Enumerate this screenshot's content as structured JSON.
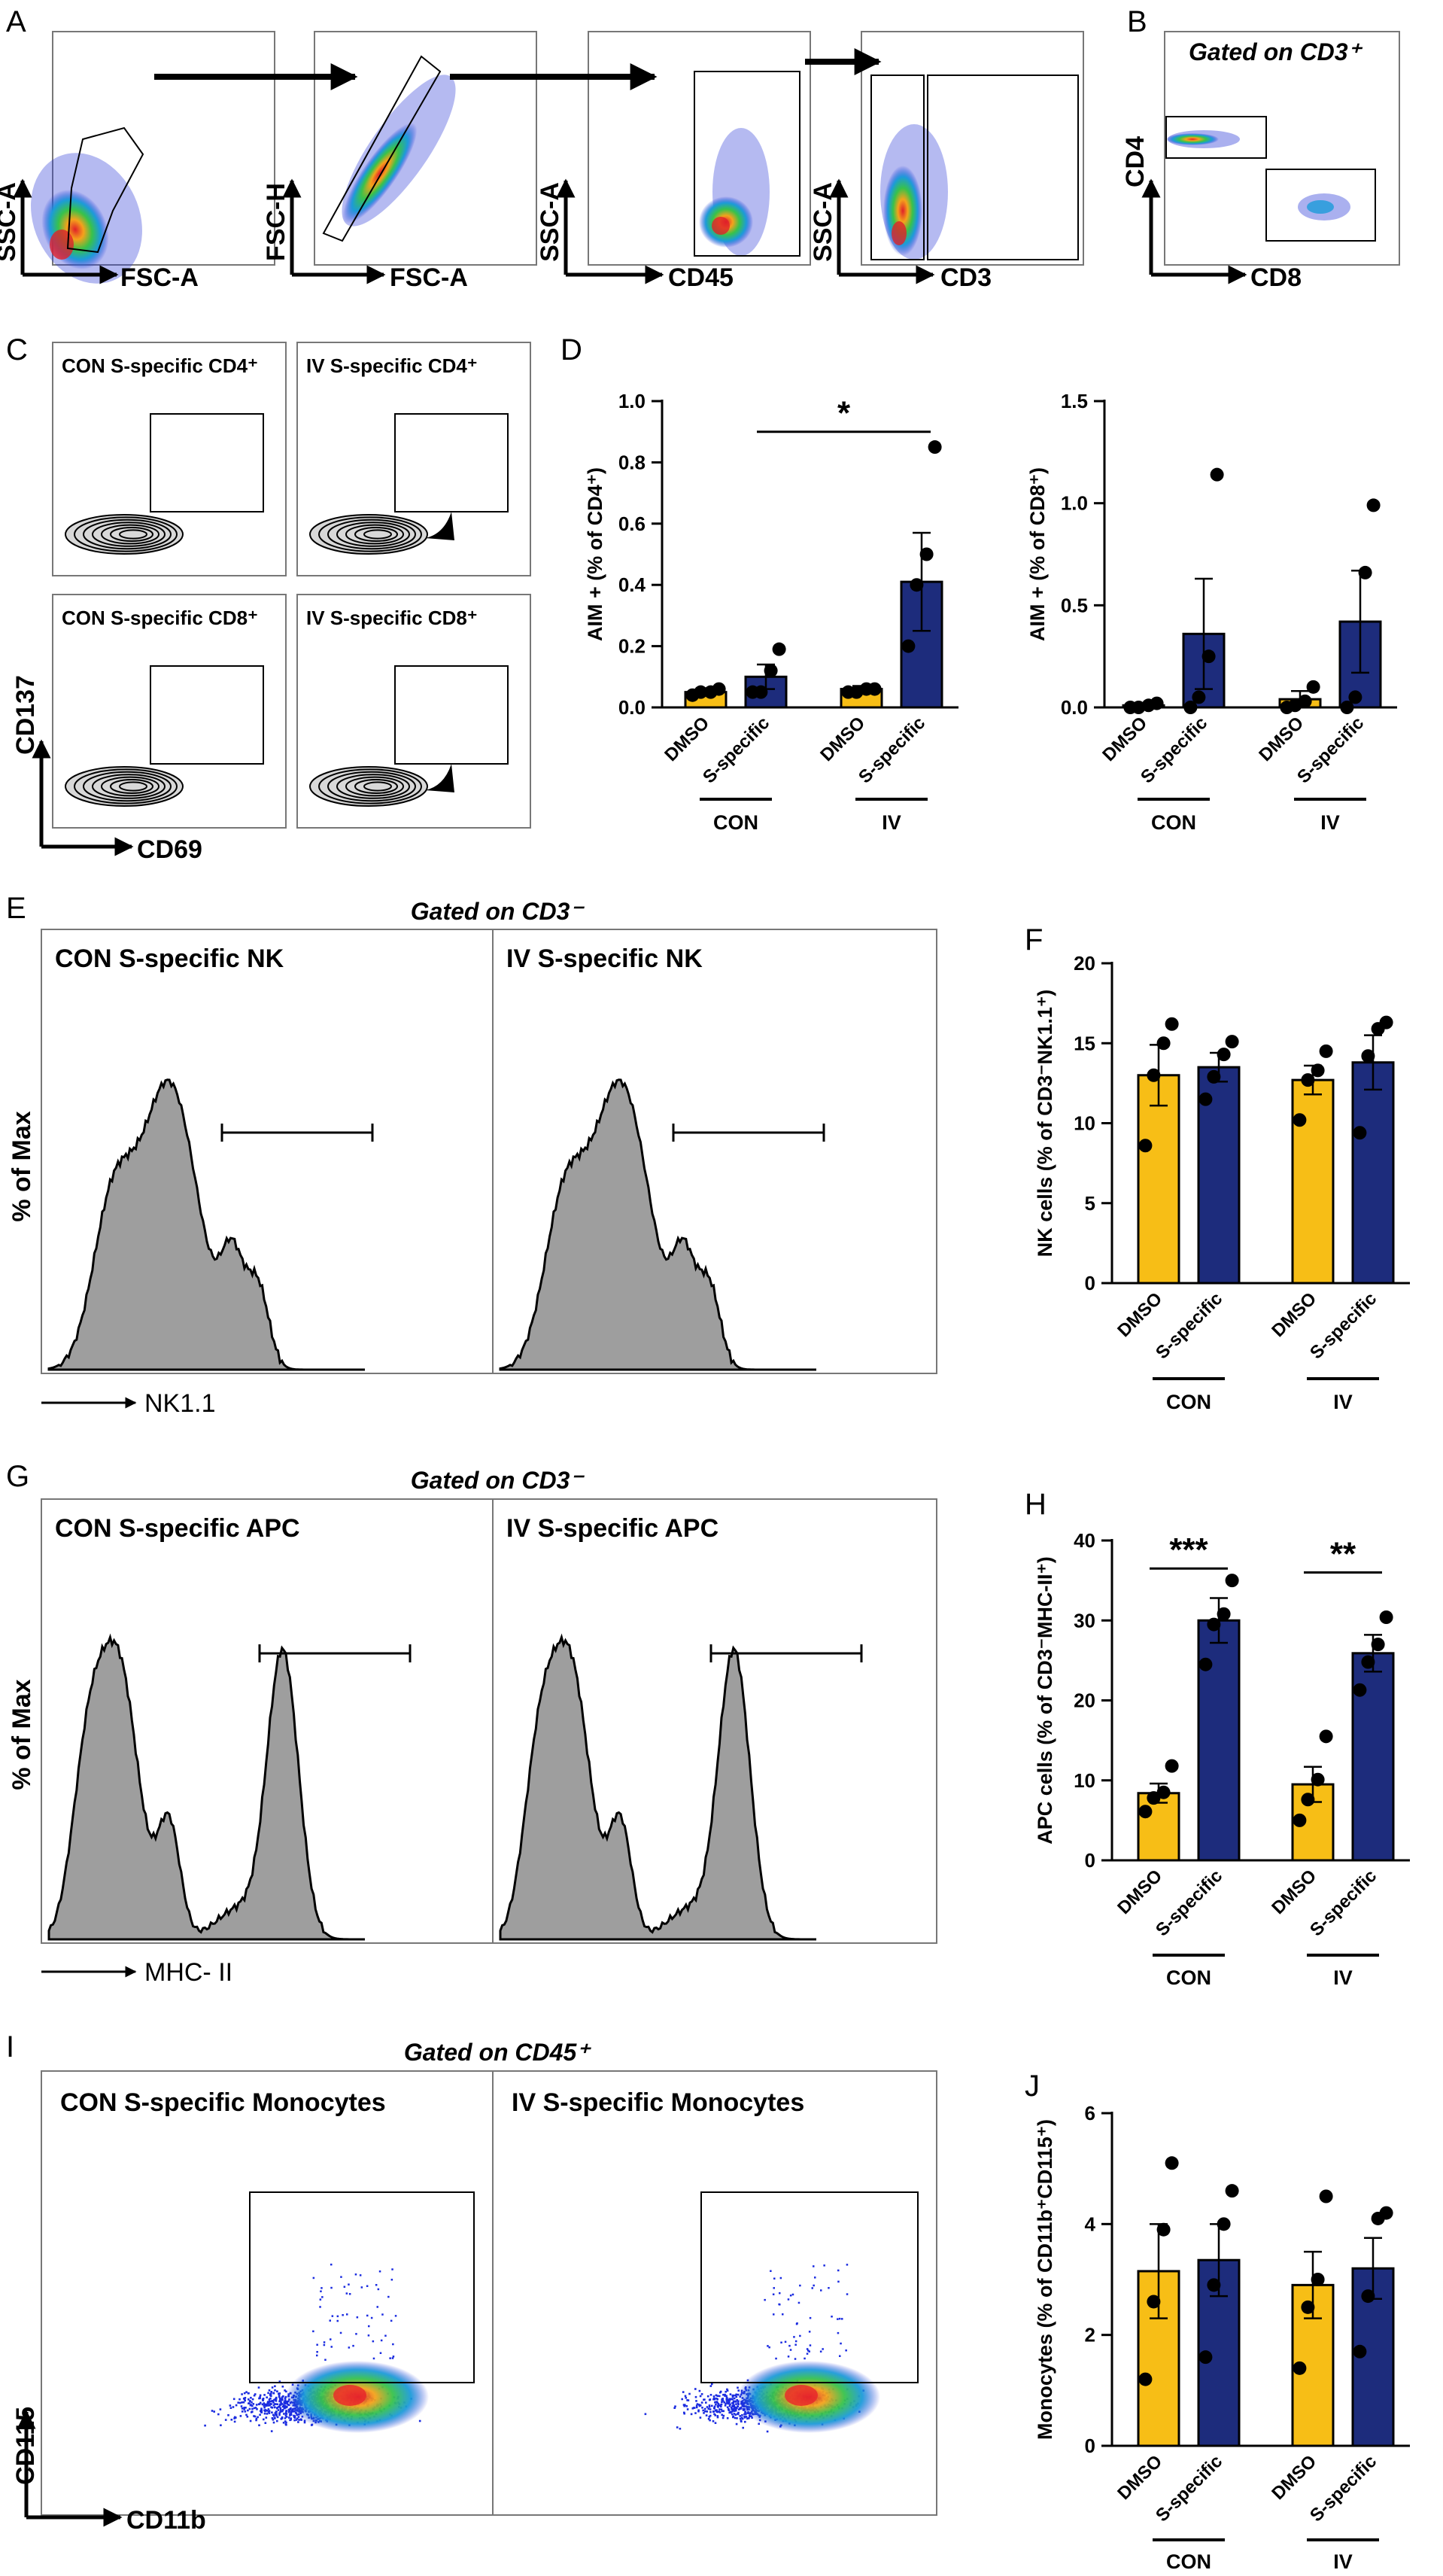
{
  "panel_letters": {
    "A": "A",
    "B": "B",
    "C": "C",
    "D": "D",
    "E": "E",
    "F": "F",
    "G": "G",
    "H": "H",
    "I": "I",
    "J": "J"
  },
  "colors": {
    "dmso": "#F7BE16",
    "s_specific": "#1D2C7C",
    "histogram_fill": "#9E9E9E",
    "dot_low": "#1A2BE0",
    "dot_high": "#E7262A"
  },
  "panel_A": {
    "plots": [
      {
        "y_label": "SSC-A",
        "x_label": "FSC-A"
      },
      {
        "y_label": "FSC-H",
        "x_label": "FSC-A"
      },
      {
        "y_label": "SSC-A",
        "x_label": "CD45"
      },
      {
        "y_label": "SSC-A",
        "x_label": "CD3"
      }
    ]
  },
  "panel_B": {
    "title": "Gated on CD3⁺",
    "y_label": "CD4",
    "x_label": "CD8"
  },
  "panel_C": {
    "titles": [
      "CON S-specific CD4⁺",
      "IV S-specific CD4⁺",
      "CON S-specific CD8⁺",
      "IV S-specific CD8⁺"
    ],
    "y_label": "CD137",
    "x_label": "CD69"
  },
  "panel_E": {
    "gate_title": "Gated on CD3⁻",
    "titles": [
      "CON S-specific NK",
      "IV S-specific NK"
    ],
    "y_label": "% of Max",
    "x_label": "NK1.1"
  },
  "panel_G": {
    "gate_title": "Gated on CD3⁻",
    "titles": [
      "CON S-specific APC",
      "IV S-specific APC"
    ],
    "y_label": "% of Max",
    "x_label": "MHC- II"
  },
  "panel_I": {
    "gate_title": "Gated on CD45⁺",
    "titles": [
      "CON S-specific Monocytes",
      "IV S-specific Monocytes"
    ],
    "y_label": "CD115",
    "x_label": "CD11b"
  },
  "chart_data": [
    {
      "id": "D1",
      "type": "bar",
      "ylabel": "AIM + (% of CD4⁺)",
      "ylim": [
        0,
        1.0
      ],
      "yticks": [
        "0.0",
        "0.2",
        "0.4",
        "0.6",
        "0.8",
        "1.0"
      ],
      "ytick_values": [
        0,
        0.2,
        0.4,
        0.6,
        0.8,
        1.0
      ],
      "categories": [
        "DMSO",
        "S-specific",
        "DMSO",
        "S-specific"
      ],
      "groups": [
        "CON",
        "IV"
      ],
      "values": [
        0.05,
        0.1,
        0.06,
        0.41
      ],
      "errors": [
        0.01,
        0.04,
        0.01,
        0.16
      ],
      "points": [
        [
          0.04,
          0.05,
          0.05,
          0.06
        ],
        [
          0.05,
          0.05,
          0.12,
          0.19
        ],
        [
          0.05,
          0.05,
          0.06,
          0.06
        ],
        [
          0.2,
          0.4,
          0.5,
          0.85
        ]
      ],
      "significance": [
        {
          "from": 1,
          "to": 3,
          "label": "*",
          "y": 0.9
        }
      ]
    },
    {
      "id": "D2",
      "type": "bar",
      "ylabel": "AIM + (% of CD8⁺)",
      "ylim": [
        0,
        1.5
      ],
      "yticks": [
        "0.0",
        "0.5",
        "1.0",
        "1.5"
      ],
      "ytick_values": [
        0,
        0.5,
        1.0,
        1.5
      ],
      "categories": [
        "DMSO",
        "S-specific",
        "DMSO",
        "S-specific"
      ],
      "groups": [
        "CON",
        "IV"
      ],
      "values": [
        0.01,
        0.36,
        0.04,
        0.42
      ],
      "errors": [
        0.01,
        0.27,
        0.04,
        0.25
      ],
      "points": [
        [
          0.0,
          0.0,
          0.01,
          0.02
        ],
        [
          0.0,
          0.05,
          0.25,
          1.14
        ],
        [
          0.0,
          0.01,
          0.03,
          0.1
        ],
        [
          0.0,
          0.05,
          0.66,
          0.99
        ]
      ],
      "significance": []
    },
    {
      "id": "F",
      "type": "bar",
      "ylabel": "NK cells (% of CD3⁻NK1.1⁺)",
      "ylim": [
        0,
        20
      ],
      "yticks": [
        "0",
        "5",
        "10",
        "15",
        "20"
      ],
      "ytick_values": [
        0,
        5,
        10,
        15,
        20
      ],
      "categories": [
        "DMSO",
        "S-specific",
        "DMSO",
        "S-specific"
      ],
      "groups": [
        "CON",
        "IV"
      ],
      "values": [
        13.0,
        13.5,
        12.7,
        13.8
      ],
      "errors": [
        1.9,
        0.9,
        0.9,
        1.7
      ],
      "points": [
        [
          8.6,
          13.0,
          15.0,
          16.2
        ],
        [
          11.5,
          12.9,
          14.3,
          15.1
        ],
        [
          10.2,
          12.7,
          13.3,
          14.5
        ],
        [
          9.4,
          14.2,
          15.9,
          16.3
        ]
      ],
      "significance": []
    },
    {
      "id": "H",
      "type": "bar",
      "ylabel": "APC cells (% of CD3⁻MHC-II⁺)",
      "ylim": [
        0,
        40
      ],
      "yticks": [
        "0",
        "10",
        "20",
        "30",
        "40"
      ],
      "ytick_values": [
        0,
        10,
        20,
        30,
        40
      ],
      "categories": [
        "DMSO",
        "S-specific",
        "DMSO",
        "S-specific"
      ],
      "groups": [
        "CON",
        "IV"
      ],
      "values": [
        8.4,
        30.0,
        9.5,
        25.9
      ],
      "errors": [
        1.2,
        2.8,
        2.2,
        2.3
      ],
      "points": [
        [
          6.1,
          7.8,
          8.5,
          11.8
        ],
        [
          24.5,
          29.5,
          30.8,
          35.0
        ],
        [
          5.0,
          7.6,
          10.1,
          15.5
        ],
        [
          21.3,
          24.8,
          27.0,
          30.4
        ]
      ],
      "significance": [
        {
          "from": 0,
          "to": 1,
          "label": "***",
          "y": 36.5
        },
        {
          "from": 2,
          "to": 3,
          "label": "**",
          "y": 36.0
        }
      ]
    },
    {
      "id": "J",
      "type": "bar",
      "ylabel": "Monocytes (% of CD11b⁺CD115⁺)",
      "ylim": [
        0,
        6
      ],
      "yticks": [
        "0",
        "2",
        "4",
        "6"
      ],
      "ytick_values": [
        0,
        2,
        4,
        6
      ],
      "categories": [
        "DMSO",
        "S-specific",
        "DMSO",
        "S-specific"
      ],
      "groups": [
        "CON",
        "IV"
      ],
      "values": [
        3.15,
        3.35,
        2.9,
        3.2
      ],
      "errors": [
        0.85,
        0.65,
        0.6,
        0.55
      ],
      "points": [
        [
          1.2,
          2.6,
          3.9,
          5.1
        ],
        [
          1.6,
          2.9,
          4.0,
          4.6
        ],
        [
          1.4,
          2.5,
          3.0,
          4.5
        ],
        [
          1.7,
          2.7,
          4.1,
          4.2
        ]
      ],
      "significance": []
    }
  ]
}
